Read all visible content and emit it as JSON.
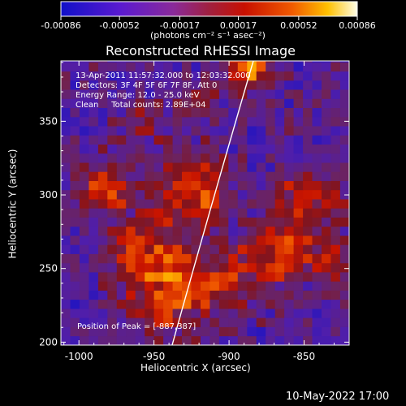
{
  "chart_data": {
    "type": "heatmap",
    "title": "Reconstructed RHESSI Image",
    "xlabel": "Heliocentric X (arcsec)",
    "ylabel": "Heliocentric Y (arcsec)",
    "xlim": [
      -1012,
      -820
    ],
    "ylim": [
      198,
      391
    ],
    "xticks": [
      -1000,
      -950,
      -900,
      -850
    ],
    "yticks": [
      200,
      250,
      300,
      350
    ],
    "colorbar": {
      "range": [
        -0.00086,
        0.00086
      ],
      "tick_labels": [
        "-0.00086",
        "-0.00052",
        "-0.00017",
        "0.00017",
        "0.00052",
        "0.00086"
      ],
      "units_label": "(photons cm⁻² s⁻¹ asec⁻²)"
    },
    "annotations": {
      "time": "13-Apr-2011 11:57:32.000 to 12:03:32.000",
      "detectors": "Detectors: 3F 4F 5F 6F 7F 8F, Att 0",
      "energy": "Energy Range: 12.0 - 25.0 keV",
      "clean": "Clean     Total counts: 2.89E+04",
      "peak": "Position of Peak = [-887,387]"
    },
    "peak_position": [
      -887,
      387
    ],
    "limb_points": [
      [
        -933,
        198
      ],
      [
        -920,
        250
      ],
      [
        -907,
        300
      ],
      [
        -893,
        350
      ],
      [
        -880,
        391
      ]
    ]
  },
  "footer": {
    "date": "10-May-2022 17:00"
  }
}
